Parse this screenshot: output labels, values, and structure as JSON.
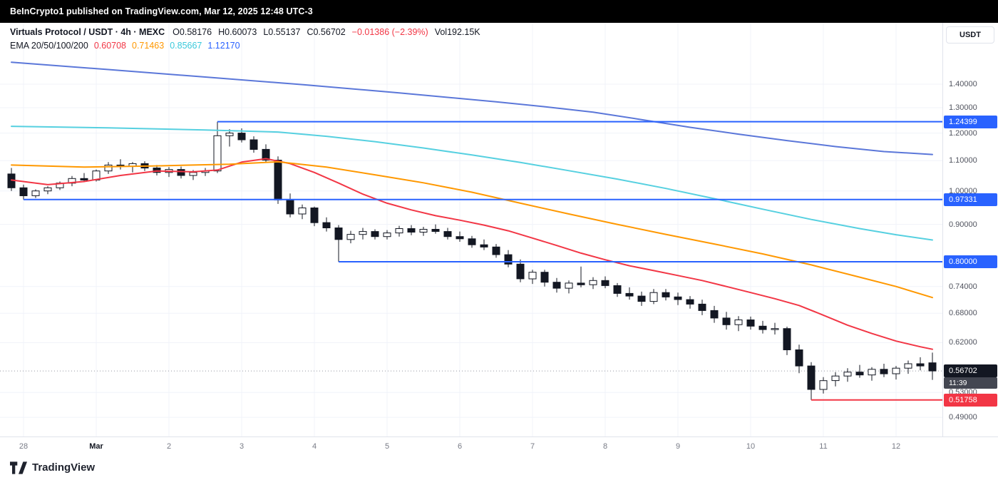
{
  "attribution": {
    "text": "BeInCrypto1 published on TradingView.com, Mar 12, 2025 12:48 UTC-3"
  },
  "header": {
    "title": "Virtuals Protocol / USDT · 4h · MEXC",
    "ohlc": [
      {
        "label": "O",
        "value": "0.58176"
      },
      {
        "label": "H",
        "value": "0.60073"
      },
      {
        "label": "L",
        "value": "0.55137"
      },
      {
        "label": "C",
        "value": "0.56702"
      }
    ],
    "change": "−0.01386 (−2.39%)",
    "change_color": "#f23645",
    "volume": "Vol192.15K",
    "ema_label": "EMA 20/50/100/200",
    "ema_values": [
      {
        "value": "0.60708",
        "color": "#f23645"
      },
      {
        "value": "0.71463",
        "color": "#ff9800"
      },
      {
        "value": "0.85667",
        "color": "#3bc9db"
      },
      {
        "value": "1.12170",
        "color": "#2962ff"
      }
    ]
  },
  "price_scale": {
    "currency": "USDT",
    "ticks": [
      {
        "label": "1.40000",
        "price": 1.4
      },
      {
        "label": "1.30000",
        "price": 1.3
      },
      {
        "label": "1.20000",
        "price": 1.2
      },
      {
        "label": "1.10000",
        "price": 1.1
      },
      {
        "label": "1.00000",
        "price": 1.0
      },
      {
        "label": "0.90000",
        "price": 0.9
      },
      {
        "label": "0.74000",
        "price": 0.74
      },
      {
        "label": "0.68000",
        "price": 0.68
      },
      {
        "label": "0.62000",
        "price": 0.62
      },
      {
        "label": "0.53000",
        "price": 0.53
      },
      {
        "label": "0.49000",
        "price": 0.49
      }
    ],
    "badges": [
      {
        "label": "1.24399",
        "price": 1.24399,
        "bg": "#2962ff"
      },
      {
        "label": "0.97331",
        "price": 0.97331,
        "bg": "#2962ff"
      },
      {
        "label": "0.80000",
        "price": 0.8,
        "bg": "#2962ff"
      },
      {
        "label": "0.51758",
        "price": 0.51758,
        "bg": "#f23645"
      }
    ],
    "current": {
      "label": "0.56702",
      "price": 0.56702,
      "bg": "#131722",
      "countdown": "11:39",
      "countdown_bg": "#434651"
    }
  },
  "time_scale": {
    "labels": [
      {
        "text": "28",
        "index": 1,
        "emphasis": false
      },
      {
        "text": "Mar",
        "index": 7,
        "emphasis": true
      },
      {
        "text": "2",
        "index": 13,
        "emphasis": false
      },
      {
        "text": "3",
        "index": 19,
        "emphasis": false
      },
      {
        "text": "4",
        "index": 25,
        "emphasis": false
      },
      {
        "text": "5",
        "index": 31,
        "emphasis": false
      },
      {
        "text": "6",
        "index": 37,
        "emphasis": false
      },
      {
        "text": "7",
        "index": 43,
        "emphasis": false
      },
      {
        "text": "8",
        "index": 49,
        "emphasis": false
      },
      {
        "text": "9",
        "index": 55,
        "emphasis": false
      },
      {
        "text": "10",
        "index": 61,
        "emphasis": false
      },
      {
        "text": "11",
        "index": 67,
        "emphasis": false
      },
      {
        "text": "12",
        "index": 73,
        "emphasis": false
      }
    ]
  },
  "footer": {
    "brand": "TradingView"
  },
  "chart_data": {
    "type": "candlestick",
    "symbol": "Virtuals Protocol / USDT",
    "interval": "4h",
    "exchange": "MEXC",
    "scale": "logarithmic",
    "open": 0.58176,
    "high": 0.60073,
    "low": 0.55137,
    "close": 0.56702,
    "change": -0.01386,
    "change_pct": -2.39,
    "volume": "192.15K",
    "current_price": 0.56702,
    "ylim": [
      0.461,
      1.542
    ],
    "y_ticks": [
      1.4,
      1.3,
      1.2,
      1.1,
      1.0,
      0.9,
      0.74,
      0.68,
      0.62,
      0.53,
      0.49
    ],
    "x_start": "Feb 27 20:00",
    "candle_interval_hours": 4,
    "candles": [
      [
        1.055,
        1.075,
        1.0,
        1.01
      ],
      [
        1.01,
        1.02,
        0.97331,
        0.985
      ],
      [
        0.985,
        1.005,
        0.978,
        1.0
      ],
      [
        1.0,
        1.015,
        0.99,
        1.01
      ],
      [
        1.01,
        1.03,
        1.003,
        1.025
      ],
      [
        1.025,
        1.048,
        1.015,
        1.04
      ],
      [
        1.04,
        1.058,
        1.028,
        1.035
      ],
      [
        1.035,
        1.07,
        1.03,
        1.065
      ],
      [
        1.065,
        1.095,
        1.055,
        1.085
      ],
      [
        1.085,
        1.105,
        1.07,
        1.08
      ],
      [
        1.08,
        1.095,
        1.06,
        1.09
      ],
      [
        1.09,
        1.098,
        1.065,
        1.075
      ],
      [
        1.075,
        1.085,
        1.05,
        1.06
      ],
      [
        1.06,
        1.078,
        1.045,
        1.07
      ],
      [
        1.07,
        1.08,
        1.04,
        1.05
      ],
      [
        1.05,
        1.068,
        1.035,
        1.06
      ],
      [
        1.06,
        1.075,
        1.048,
        1.065
      ],
      [
        1.065,
        1.24399,
        1.058,
        1.19
      ],
      [
        1.19,
        1.215,
        1.15,
        1.2
      ],
      [
        1.2,
        1.218,
        1.165,
        1.175
      ],
      [
        1.175,
        1.188,
        1.128,
        1.14
      ],
      [
        1.14,
        1.158,
        1.092,
        1.102
      ],
      [
        1.102,
        1.115,
        0.96,
        0.972
      ],
      [
        0.972,
        0.992,
        0.92,
        0.93
      ],
      [
        0.93,
        0.958,
        0.915,
        0.948
      ],
      [
        0.948,
        0.952,
        0.895,
        0.905
      ],
      [
        0.905,
        0.92,
        0.88,
        0.89
      ],
      [
        0.89,
        0.898,
        0.8,
        0.858
      ],
      [
        0.858,
        0.882,
        0.848,
        0.872
      ],
      [
        0.872,
        0.89,
        0.858,
        0.88
      ],
      [
        0.88,
        0.886,
        0.858,
        0.866
      ],
      [
        0.866,
        0.884,
        0.858,
        0.876
      ],
      [
        0.876,
        0.896,
        0.866,
        0.888
      ],
      [
        0.888,
        0.898,
        0.87,
        0.878
      ],
      [
        0.878,
        0.893,
        0.868,
        0.886
      ],
      [
        0.886,
        0.9,
        0.874,
        0.88
      ],
      [
        0.88,
        0.89,
        0.858,
        0.866
      ],
      [
        0.866,
        0.88,
        0.852,
        0.86
      ],
      [
        0.86,
        0.868,
        0.836,
        0.844
      ],
      [
        0.844,
        0.858,
        0.83,
        0.838
      ],
      [
        0.838,
        0.846,
        0.81,
        0.818
      ],
      [
        0.818,
        0.83,
        0.786,
        0.794
      ],
      [
        0.794,
        0.806,
        0.75,
        0.758
      ],
      [
        0.758,
        0.78,
        0.746,
        0.774
      ],
      [
        0.774,
        0.78,
        0.74,
        0.75
      ],
      [
        0.75,
        0.76,
        0.726,
        0.736
      ],
      [
        0.736,
        0.754,
        0.724,
        0.748
      ],
      [
        0.748,
        0.788,
        0.738,
        0.744
      ],
      [
        0.744,
        0.762,
        0.734,
        0.754
      ],
      [
        0.754,
        0.764,
        0.736,
        0.742
      ],
      [
        0.742,
        0.748,
        0.716,
        0.724
      ],
      [
        0.724,
        0.738,
        0.71,
        0.718
      ],
      [
        0.718,
        0.728,
        0.696,
        0.706
      ],
      [
        0.706,
        0.734,
        0.7,
        0.726
      ],
      [
        0.726,
        0.734,
        0.708,
        0.716
      ],
      [
        0.716,
        0.726,
        0.698,
        0.71
      ],
      [
        0.71,
        0.718,
        0.69,
        0.7
      ],
      [
        0.7,
        0.71,
        0.676,
        0.686
      ],
      [
        0.686,
        0.696,
        0.66,
        0.67
      ],
      [
        0.67,
        0.683,
        0.646,
        0.656
      ],
      [
        0.656,
        0.674,
        0.643,
        0.666
      ],
      [
        0.666,
        0.673,
        0.646,
        0.653
      ],
      [
        0.653,
        0.664,
        0.638,
        0.646
      ],
      [
        0.646,
        0.66,
        0.636,
        0.648
      ],
      [
        0.648,
        0.652,
        0.596,
        0.606
      ],
      [
        0.606,
        0.616,
        0.563,
        0.576
      ],
      [
        0.576,
        0.583,
        0.51758,
        0.535
      ],
      [
        0.535,
        0.556,
        0.528,
        0.55
      ],
      [
        0.55,
        0.565,
        0.54,
        0.558
      ],
      [
        0.558,
        0.572,
        0.548,
        0.565
      ],
      [
        0.565,
        0.578,
        0.555,
        0.56
      ],
      [
        0.56,
        0.574,
        0.55,
        0.57
      ],
      [
        0.57,
        0.58,
        0.556,
        0.562
      ],
      [
        0.562,
        0.576,
        0.552,
        0.572
      ],
      [
        0.572,
        0.586,
        0.562,
        0.58
      ],
      [
        0.58,
        0.592,
        0.568,
        0.576
      ],
      [
        0.58176,
        0.60073,
        0.55137,
        0.56702
      ]
    ],
    "ema": {
      "periods": [
        20,
        50,
        100,
        200
      ],
      "series": [
        {
          "name": "EMA20",
          "color": "#f23645",
          "last": 0.60708,
          "points": [
            [
              0,
              1.035
            ],
            [
              3,
              1.02
            ],
            [
              6,
              1.03
            ],
            [
              9,
              1.05
            ],
            [
              12,
              1.065
            ],
            [
              15,
              1.062
            ],
            [
              17,
              1.068
            ],
            [
              19,
              1.095
            ],
            [
              21,
              1.107
            ],
            [
              23,
              1.09
            ],
            [
              25,
              1.06
            ],
            [
              27,
              1.025
            ],
            [
              29,
              0.99
            ],
            [
              31,
              0.962
            ],
            [
              33,
              0.942
            ],
            [
              35,
              0.925
            ],
            [
              37,
              0.912
            ],
            [
              39,
              0.898
            ],
            [
              41,
              0.882
            ],
            [
              43,
              0.862
            ],
            [
              45,
              0.842
            ],
            [
              47,
              0.822
            ],
            [
              49,
              0.805
            ],
            [
              51,
              0.79
            ],
            [
              53,
              0.778
            ],
            [
              55,
              0.766
            ],
            [
              57,
              0.754
            ],
            [
              59,
              0.74
            ],
            [
              61,
              0.726
            ],
            [
              63,
              0.712
            ],
            [
              65,
              0.697
            ],
            [
              67,
              0.676
            ],
            [
              69,
              0.655
            ],
            [
              71,
              0.638
            ],
            [
              73,
              0.623
            ],
            [
              75,
              0.612
            ],
            [
              76,
              0.60708
            ]
          ]
        },
        {
          "name": "EMA50",
          "color": "#ff9800",
          "last": 0.71463,
          "points": [
            [
              0,
              1.085
            ],
            [
              6,
              1.078
            ],
            [
              12,
              1.082
            ],
            [
              18,
              1.088
            ],
            [
              22,
              1.096
            ],
            [
              26,
              1.078
            ],
            [
              30,
              1.052
            ],
            [
              34,
              1.026
            ],
            [
              38,
              0.996
            ],
            [
              42,
              0.962
            ],
            [
              46,
              0.93
            ],
            [
              50,
              0.9
            ],
            [
              54,
              0.872
            ],
            [
              58,
              0.846
            ],
            [
              62,
              0.82
            ],
            [
              66,
              0.792
            ],
            [
              70,
              0.762
            ],
            [
              73,
              0.74
            ],
            [
              76,
              0.71463
            ]
          ]
        },
        {
          "name": "EMA100",
          "color": "#56d0e0",
          "last": 0.85667,
          "points": [
            [
              0,
              1.226
            ],
            [
              8,
              1.22
            ],
            [
              16,
              1.212
            ],
            [
              22,
              1.204
            ],
            [
              26,
              1.188
            ],
            [
              30,
              1.168
            ],
            [
              34,
              1.145
            ],
            [
              38,
              1.12
            ],
            [
              42,
              1.094
            ],
            [
              46,
              1.066
            ],
            [
              50,
              1.038
            ],
            [
              54,
              1.008
            ],
            [
              58,
              0.976
            ],
            [
              62,
              0.944
            ],
            [
              66,
              0.914
            ],
            [
              70,
              0.888
            ],
            [
              73,
              0.871
            ],
            [
              76,
              0.85667
            ]
          ]
        },
        {
          "name": "EMA200",
          "color": "#5b77d9",
          "last": 1.1217,
          "points": [
            [
              0,
              1.5
            ],
            [
              8,
              1.466
            ],
            [
              16,
              1.432
            ],
            [
              24,
              1.398
            ],
            [
              32,
              1.362
            ],
            [
              40,
              1.324
            ],
            [
              44,
              1.304
            ],
            [
              48,
              1.282
            ],
            [
              52,
              1.252
            ],
            [
              56,
              1.222
            ],
            [
              60,
              1.196
            ],
            [
              64,
              1.172
            ],
            [
              68,
              1.15
            ],
            [
              72,
              1.132
            ],
            [
              76,
              1.1217
            ]
          ]
        }
      ]
    },
    "horizontal_lines": [
      {
        "price": 1.24399,
        "color": "#2962ff",
        "from_index": 17
      },
      {
        "price": 0.97331,
        "color": "#2962ff",
        "from_index": 1
      },
      {
        "price": 0.8,
        "color": "#2962ff",
        "from_index": 27
      },
      {
        "price": 0.51758,
        "color": "#f23645",
        "from_index": 66
      }
    ],
    "time_labels": [
      "28",
      "Mar",
      "2",
      "3",
      "4",
      "5",
      "6",
      "7",
      "8",
      "9",
      "10",
      "11",
      "12"
    ]
  }
}
